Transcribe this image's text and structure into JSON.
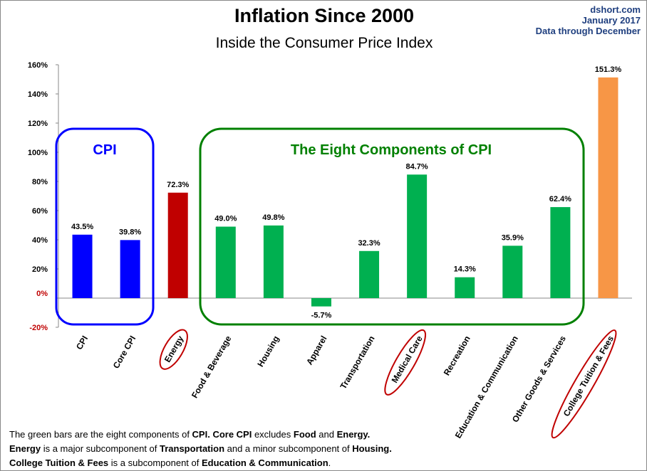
{
  "header": {
    "title": "Inflation Since 2000",
    "subtitle": "Inside the Consumer Price Index",
    "source": [
      "dshort.com",
      "January 2017",
      "Data through December"
    ]
  },
  "chart_data": {
    "type": "bar",
    "title": "Inflation Since 2000",
    "subtitle": "Inside the Consumer Price Index",
    "categories": [
      "CPI",
      "Core CPI",
      "Energy",
      "Food & Beverage",
      "Housing",
      "Apparel",
      "Transportation",
      "Medical Care",
      "Recreation",
      "Education & Communication",
      "Other Goods & Services",
      "College Tuition & Fees"
    ],
    "values": [
      43.5,
      39.8,
      72.3,
      49.0,
      49.8,
      -5.7,
      32.3,
      84.7,
      14.3,
      35.9,
      62.4,
      151.3
    ],
    "labels": [
      "43.5%",
      "39.8%",
      "72.3%",
      "49.0%",
      "49.8%",
      "-5.7%",
      "32.3%",
      "84.7%",
      "14.3%",
      "35.9%",
      "62.4%",
      "151.3%"
    ],
    "colors": [
      "#0000ff",
      "#0000ff",
      "#c00000",
      "#00b050",
      "#00b050",
      "#00b050",
      "#00b050",
      "#00b050",
      "#00b050",
      "#00b050",
      "#00b050",
      "#f79646"
    ],
    "circled": [
      "Energy",
      "Medical Care",
      "College Tuition & Fees"
    ],
    "ylim": [
      -20,
      160
    ],
    "yticks": [
      "-20%",
      "0%",
      "20%",
      "40%",
      "60%",
      "80%",
      "100%",
      "120%",
      "140%",
      "160%"
    ],
    "annotations": [
      {
        "text": "CPI",
        "color": "#0000ff"
      },
      {
        "text": "The Eight Components of CPI",
        "color": "#008000"
      }
    ],
    "grid": false
  },
  "notes": [
    [
      {
        "t": "The green bars are the eight components of "
      },
      {
        "t": "CPI. Core CPI",
        "b": 1
      },
      {
        "t": " excludes "
      },
      {
        "t": "Food",
        "b": 1
      },
      {
        "t": " and "
      },
      {
        "t": "Energy.",
        "b": 1
      }
    ],
    [
      {
        "t": "Energy",
        "b": 1
      },
      {
        "t": " is a  major subcomponent of "
      },
      {
        "t": "Transportation",
        "b": 1
      },
      {
        "t": " and a minor subcomponent of "
      },
      {
        "t": "Housing.",
        "b": 1
      }
    ],
    [
      {
        "t": "College Tuition & Fees",
        "b": 1
      },
      {
        "t": " is a subcomponent of "
      },
      {
        "t": "Education & Communication",
        "b": 1
      },
      {
        "t": "."
      }
    ]
  ]
}
